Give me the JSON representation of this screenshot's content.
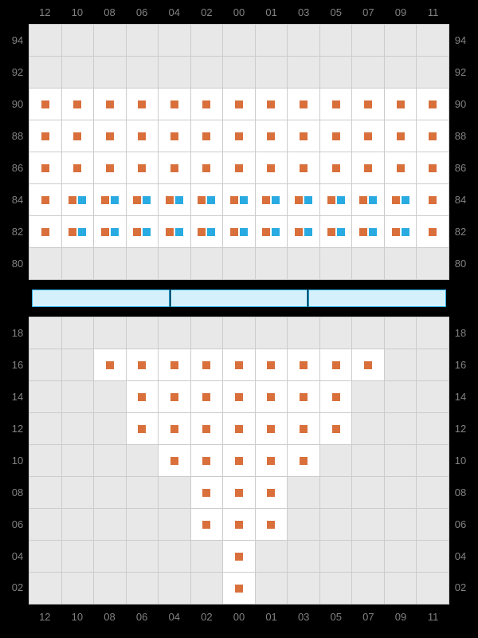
{
  "columns": [
    "12",
    "10",
    "08",
    "06",
    "04",
    "02",
    "00",
    "01",
    "03",
    "05",
    "07",
    "09",
    "11"
  ],
  "upper": {
    "rows": [
      "94",
      "92",
      "90",
      "88",
      "86",
      "84",
      "82",
      "80"
    ],
    "cells": {
      "94": [
        0,
        0,
        0,
        0,
        0,
        0,
        0,
        0,
        0,
        0,
        0,
        0,
        0
      ],
      "92": [
        0,
        0,
        0,
        0,
        0,
        0,
        0,
        0,
        0,
        0,
        0,
        0,
        0
      ],
      "90": [
        1,
        1,
        1,
        1,
        1,
        1,
        1,
        1,
        1,
        1,
        1,
        1,
        1
      ],
      "88": [
        1,
        1,
        1,
        1,
        1,
        1,
        1,
        1,
        1,
        1,
        1,
        1,
        1
      ],
      "86": [
        1,
        1,
        1,
        1,
        1,
        1,
        1,
        1,
        1,
        1,
        1,
        1,
        1
      ],
      "84": [
        1,
        2,
        2,
        2,
        2,
        2,
        2,
        2,
        2,
        2,
        2,
        2,
        1
      ],
      "82": [
        1,
        2,
        2,
        2,
        2,
        2,
        2,
        2,
        2,
        2,
        2,
        2,
        1
      ],
      "80": [
        0,
        0,
        0,
        0,
        0,
        0,
        0,
        0,
        0,
        0,
        0,
        0,
        0
      ]
    }
  },
  "lower": {
    "rows": [
      "18",
      "16",
      "14",
      "12",
      "10",
      "08",
      "06",
      "04",
      "02"
    ],
    "cells": {
      "18": [
        0,
        0,
        0,
        0,
        0,
        0,
        0,
        0,
        0,
        0,
        0,
        0,
        0
      ],
      "16": [
        0,
        0,
        1,
        1,
        1,
        1,
        1,
        1,
        1,
        1,
        1,
        0,
        0
      ],
      "14": [
        0,
        0,
        0,
        1,
        1,
        1,
        1,
        1,
        1,
        1,
        0,
        0,
        0
      ],
      "12": [
        0,
        0,
        0,
        1,
        1,
        1,
        1,
        1,
        1,
        1,
        0,
        0,
        0
      ],
      "10": [
        0,
        0,
        0,
        0,
        1,
        1,
        1,
        1,
        1,
        0,
        0,
        0,
        0
      ],
      "08": [
        0,
        0,
        0,
        0,
        0,
        1,
        1,
        1,
        0,
        0,
        0,
        0,
        0
      ],
      "06": [
        0,
        0,
        0,
        0,
        0,
        1,
        1,
        1,
        0,
        0,
        0,
        0,
        0
      ],
      "04": [
        0,
        0,
        0,
        0,
        0,
        0,
        1,
        0,
        0,
        0,
        0,
        0,
        0
      ],
      "02": [
        0,
        0,
        0,
        0,
        0,
        0,
        1,
        0,
        0,
        0,
        0,
        0,
        0
      ]
    }
  },
  "colors": {
    "orange": "#d9703c",
    "blue": "#29abe2",
    "empty": "#e8e8e8",
    "seat": "#ffffff",
    "grid": "#cccccc",
    "label": "#828282",
    "stage_fill": "#d4f0fa"
  }
}
